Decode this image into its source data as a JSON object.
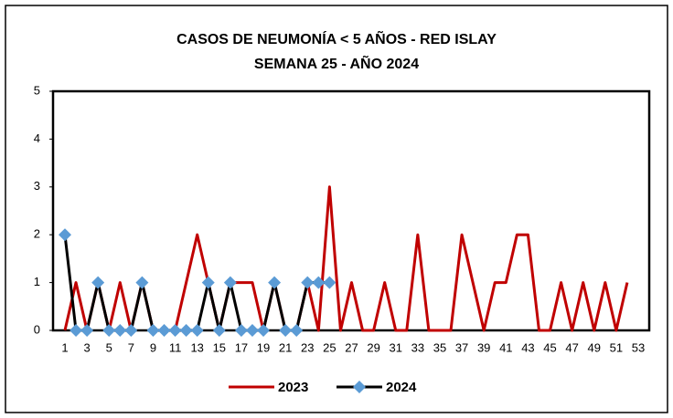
{
  "chart_data": {
    "type": "line",
    "title": "CASOS DE NEUMONÍA < 5 AÑOS - RED ISLAY",
    "subtitle": "SEMANA  25 -  AÑO 2024",
    "categories": [
      1,
      null,
      3,
      null,
      5,
      null,
      7,
      null,
      9,
      null,
      11,
      null,
      13,
      null,
      15,
      null,
      17,
      null,
      19,
      null,
      21,
      null,
      23,
      null,
      25,
      null,
      27,
      null,
      29,
      null,
      31,
      null,
      33,
      null,
      35,
      null,
      37,
      null,
      39,
      null,
      41,
      null,
      43,
      null,
      45,
      null,
      47,
      null,
      49,
      null,
      51,
      null,
      53
    ],
    "series": [
      {
        "name": "2023",
        "color": "#c00000",
        "values": [
          0,
          1,
          0,
          1,
          0,
          1,
          0,
          1,
          0,
          0,
          0,
          1,
          2,
          1,
          0,
          1,
          1,
          1,
          0,
          1,
          0,
          0,
          1,
          0,
          3,
          0,
          1,
          0,
          0,
          1,
          0,
          0,
          2,
          0,
          0,
          0,
          2,
          1,
          0,
          1,
          1,
          2,
          2,
          0,
          0,
          1,
          0,
          1,
          0,
          1,
          0,
          1,
          null
        ]
      },
      {
        "name": "2024",
        "color": "#000000",
        "marker_color": "#5b9bd5",
        "values": [
          2,
          0,
          0,
          1,
          0,
          0,
          0,
          1,
          0,
          0,
          0,
          0,
          0,
          1,
          0,
          1,
          0,
          0,
          0,
          1,
          0,
          0,
          1,
          1,
          1,
          null,
          null,
          null,
          null,
          null,
          null,
          null,
          null,
          null,
          null,
          null,
          null,
          null,
          null,
          null,
          null,
          null,
          null,
          null,
          null,
          null,
          null,
          null,
          null,
          null,
          null,
          null,
          null
        ]
      }
    ],
    "ylim": [
      0,
      5
    ],
    "yticks": [
      0,
      1,
      2,
      3,
      4,
      5
    ],
    "grid": false,
    "legend": "bottom"
  }
}
